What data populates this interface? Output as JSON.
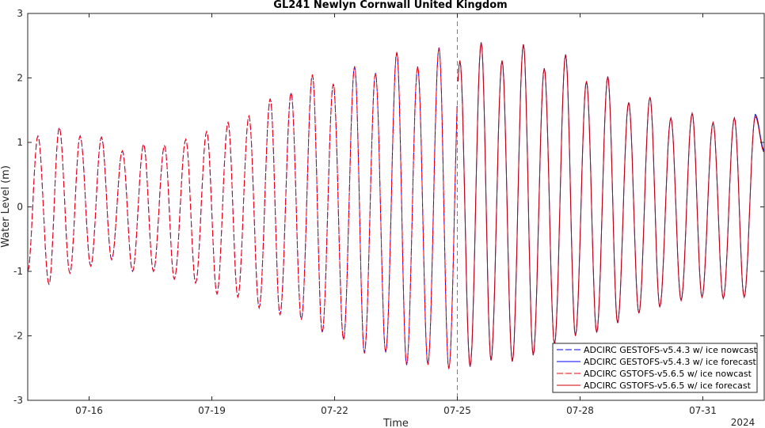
{
  "chart_data": {
    "type": "line",
    "title": "GL241 Newlyn Cornwall United Kingdom",
    "xlabel": "Time",
    "ylabel": "Water Level (m)",
    "year_label": "2024",
    "x_ticks": [
      "07-16",
      "07-19",
      "07-22",
      "07-25",
      "07-28",
      "07-31"
    ],
    "y_ticks": [
      "-3",
      "-2",
      "-1",
      "0",
      "1",
      "2",
      "3"
    ],
    "xlim": [
      "2024-07-14T12:00",
      "2024-08-01T12:00"
    ],
    "ylim": [
      -3,
      3
    ],
    "nowcast_forecast_boundary": "2024-07-25T00:00",
    "grid": false,
    "legend_position": "bottom-right",
    "series": [
      {
        "name": "ADCIRC GESTOFS-v5.4.3 w/ ice nowcast",
        "color": "#0000ff",
        "style": "dashed",
        "period": "nowcast"
      },
      {
        "name": "ADCIRC GESTOFS-v5.4.3 w/ ice forecast",
        "color": "#0000ff",
        "style": "solid",
        "period": "forecast"
      },
      {
        "name": "ADCIRC GSTOFS-v5.6.5 w/ ice nowcast",
        "color": "#ff0000",
        "style": "dashed",
        "period": "nowcast"
      },
      {
        "name": "ADCIRC GSTOFS-v5.6.5 w/ ice forecast",
        "color": "#cc0000",
        "style": "solid",
        "period": "forecast"
      }
    ],
    "high_tides": [
      {
        "t": "2024-07-14T18:00",
        "v": 1.1
      },
      {
        "t": "2024-07-15T06:30",
        "v": 1.23
      },
      {
        "t": "2024-07-15T18:45",
        "v": 1.1
      },
      {
        "t": "2024-07-16T07:15",
        "v": 1.08
      },
      {
        "t": "2024-07-16T19:30",
        "v": 0.87
      },
      {
        "t": "2024-07-17T08:00",
        "v": 0.97
      },
      {
        "t": "2024-07-17T20:15",
        "v": 0.95
      },
      {
        "t": "2024-07-18T08:45",
        "v": 1.05
      },
      {
        "t": "2024-07-18T21:00",
        "v": 1.17
      },
      {
        "t": "2024-07-19T09:30",
        "v": 1.31
      },
      {
        "t": "2024-07-19T21:45",
        "v": 1.41
      },
      {
        "t": "2024-07-20T10:15",
        "v": 1.68
      },
      {
        "t": "2024-07-20T22:30",
        "v": 1.77
      },
      {
        "t": "2024-07-21T11:00",
        "v": 2.05
      },
      {
        "t": "2024-07-21T23:15",
        "v": 1.91
      },
      {
        "t": "2024-07-22T11:45",
        "v": 2.18
      },
      {
        "t": "2024-07-23T00:00",
        "v": 2.08
      },
      {
        "t": "2024-07-23T12:30",
        "v": 2.4
      },
      {
        "t": "2024-07-24T00:45",
        "v": 2.18
      },
      {
        "t": "2024-07-24T13:15",
        "v": 2.47
      },
      {
        "t": "2024-07-25T01:30",
        "v": 2.27
      },
      {
        "t": "2024-07-25T14:00",
        "v": 2.55
      },
      {
        "t": "2024-07-26T02:15",
        "v": 2.27
      },
      {
        "t": "2024-07-26T14:45",
        "v": 2.52
      },
      {
        "t": "2024-07-27T03:00",
        "v": 2.15
      },
      {
        "t": "2024-07-27T15:30",
        "v": 2.36
      },
      {
        "t": "2024-07-28T03:45",
        "v": 1.95
      },
      {
        "t": "2024-07-28T16:15",
        "v": 2.02
      },
      {
        "t": "2024-07-29T04:30",
        "v": 1.62
      },
      {
        "t": "2024-07-29T17:00",
        "v": 1.7
      },
      {
        "t": "2024-07-30T05:15",
        "v": 1.38
      },
      {
        "t": "2024-07-30T17:45",
        "v": 1.45
      },
      {
        "t": "2024-07-31T06:00",
        "v": 1.31
      },
      {
        "t": "2024-07-31T18:30",
        "v": 1.38
      },
      {
        "t": "2024-08-01T06:45",
        "v": 1.4
      }
    ],
    "low_tides": [
      {
        "t": "2024-07-14T12:00",
        "v": -1.0
      },
      {
        "t": "2024-07-15T00:30",
        "v": -1.2
      },
      {
        "t": "2024-07-15T12:45",
        "v": -1.03
      },
      {
        "t": "2024-07-16T01:00",
        "v": -0.92
      },
      {
        "t": "2024-07-16T13:15",
        "v": -0.82
      },
      {
        "t": "2024-07-17T01:30",
        "v": -1.0
      },
      {
        "t": "2024-07-17T13:45",
        "v": -1.0
      },
      {
        "t": "2024-07-18T02:00",
        "v": -1.12
      },
      {
        "t": "2024-07-18T14:30",
        "v": -1.18
      },
      {
        "t": "2024-07-19T03:00",
        "v": -1.35
      },
      {
        "t": "2024-07-19T15:15",
        "v": -1.4
      },
      {
        "t": "2024-07-20T03:45",
        "v": -1.57
      },
      {
        "t": "2024-07-20T16:00",
        "v": -1.68
      },
      {
        "t": "2024-07-21T04:30",
        "v": -1.75
      },
      {
        "t": "2024-07-21T16:45",
        "v": -1.95
      },
      {
        "t": "2024-07-22T05:15",
        "v": -2.06
      },
      {
        "t": "2024-07-22T17:30",
        "v": -2.27
      },
      {
        "t": "2024-07-23T06:00",
        "v": -2.26
      },
      {
        "t": "2024-07-23T18:15",
        "v": -2.45
      },
      {
        "t": "2024-07-24T06:45",
        "v": -2.45
      },
      {
        "t": "2024-07-24T19:00",
        "v": -2.51
      },
      {
        "t": "2024-07-25T07:30",
        "v": -2.48
      },
      {
        "t": "2024-07-25T19:45",
        "v": -2.38
      },
      {
        "t": "2024-07-26T08:15",
        "v": -2.4
      },
      {
        "t": "2024-07-26T20:30",
        "v": -2.3
      },
      {
        "t": "2024-07-27T09:00",
        "v": -2.13
      },
      {
        "t": "2024-07-27T21:15",
        "v": -2.0
      },
      {
        "t": "2024-07-28T09:45",
        "v": -1.95
      },
      {
        "t": "2024-07-28T22:00",
        "v": -1.8
      },
      {
        "t": "2024-07-29T10:30",
        "v": -1.65
      },
      {
        "t": "2024-07-29T22:45",
        "v": -1.55
      },
      {
        "t": "2024-07-30T11:15",
        "v": -1.45
      },
      {
        "t": "2024-07-30T23:30",
        "v": -1.4
      },
      {
        "t": "2024-07-31T12:00",
        "v": -1.42
      },
      {
        "t": "2024-08-01T00:15",
        "v": -1.4
      }
    ],
    "end_value": {
      "t": "2024-08-01T12:00",
      "v": 0.85
    }
  }
}
